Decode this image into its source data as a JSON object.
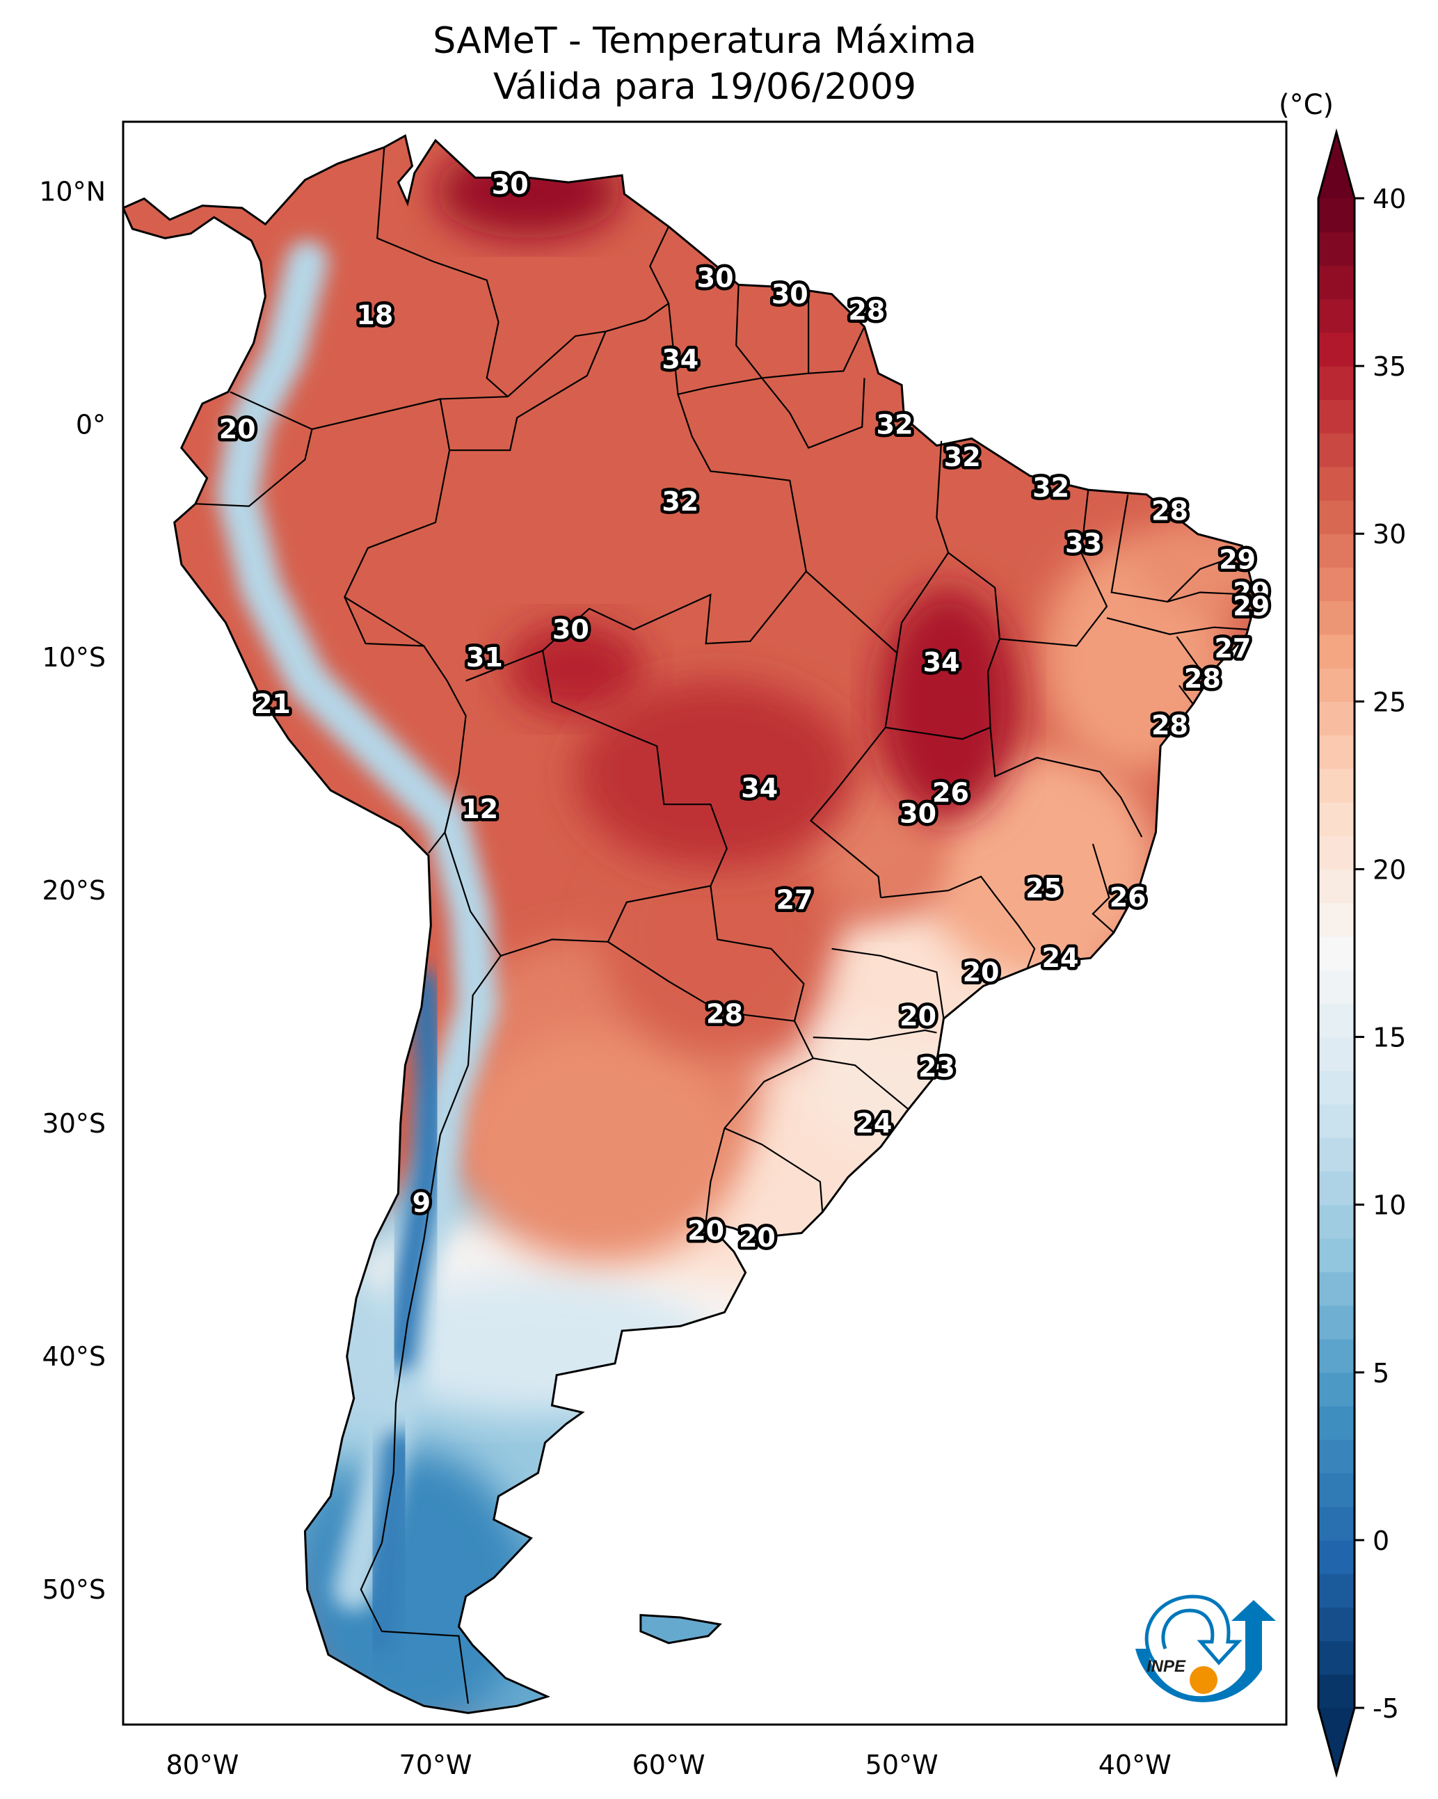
{
  "chart_data": {
    "type": "heatmap",
    "title": "SAMeT - Temperatura Máxima",
    "subtitle": "Válida para 19/06/2009",
    "variable": "Maximum temperature",
    "units": "(°C)",
    "lon_range": [
      -83.4,
      -33.5
    ],
    "lat_range": [
      -55.8,
      13.0
    ],
    "x_ticks": [
      {
        "value": -80,
        "label": "80°W"
      },
      {
        "value": -70,
        "label": "70°W"
      },
      {
        "value": -60,
        "label": "60°W"
      },
      {
        "value": -50,
        "label": "50°W"
      },
      {
        "value": -40,
        "label": "40°W"
      }
    ],
    "y_ticks": [
      {
        "value": 10,
        "label": "10°N"
      },
      {
        "value": 0,
        "label": "0°"
      },
      {
        "value": -10,
        "label": "10°S"
      },
      {
        "value": -20,
        "label": "20°S"
      },
      {
        "value": -30,
        "label": "30°S"
      },
      {
        "value": -40,
        "label": "40°S"
      },
      {
        "value": -50,
        "label": "50°S"
      }
    ],
    "colorbar": {
      "colormap": "RdBu_r",
      "vmin": -5,
      "vmax": 40,
      "extend": "both",
      "ticks": [
        -5,
        0,
        5,
        10,
        15,
        20,
        25,
        30,
        35,
        40
      ],
      "label": "(°C)",
      "colors": [
        "#053061",
        "#2166ac",
        "#4393c3",
        "#92c5de",
        "#d1e5f0",
        "#f7f7f7",
        "#fddbc7",
        "#f4a582",
        "#d6604d",
        "#b2182b",
        "#67001f"
      ]
    },
    "station_labels": [
      {
        "lon": -66.8,
        "lat": 10.3,
        "value": 30
      },
      {
        "lon": -72.6,
        "lat": 4.7,
        "value": 18
      },
      {
        "lon": -58.0,
        "lat": 6.3,
        "value": 30
      },
      {
        "lon": -54.8,
        "lat": 5.6,
        "value": 30
      },
      {
        "lon": -51.5,
        "lat": 4.9,
        "value": 28
      },
      {
        "lon": -59.5,
        "lat": 2.8,
        "value": 34
      },
      {
        "lon": -78.5,
        "lat": -0.2,
        "value": 20
      },
      {
        "lon": -50.3,
        "lat": 0.0,
        "value": 32
      },
      {
        "lon": -47.4,
        "lat": -1.4,
        "value": 32
      },
      {
        "lon": -59.5,
        "lat": -3.3,
        "value": 32
      },
      {
        "lon": -43.6,
        "lat": -2.7,
        "value": 32
      },
      {
        "lon": -42.2,
        "lat": -5.1,
        "value": 33
      },
      {
        "lon": -38.5,
        "lat": -3.7,
        "value": 28
      },
      {
        "lon": -35.6,
        "lat": -5.8,
        "value": 29
      },
      {
        "lon": -35.0,
        "lat": -7.2,
        "value": 29
      },
      {
        "lon": -35.0,
        "lat": -7.8,
        "value": 29
      },
      {
        "lon": -35.8,
        "lat": -9.6,
        "value": 27
      },
      {
        "lon": -37.1,
        "lat": -10.9,
        "value": 28
      },
      {
        "lon": -38.5,
        "lat": -12.9,
        "value": 28
      },
      {
        "lon": -64.2,
        "lat": -8.8,
        "value": 30
      },
      {
        "lon": -67.9,
        "lat": -10.0,
        "value": 31
      },
      {
        "lon": -48.3,
        "lat": -10.2,
        "value": 34
      },
      {
        "lon": -77.0,
        "lat": -12.0,
        "value": 21
      },
      {
        "lon": -68.1,
        "lat": -16.5,
        "value": 12
      },
      {
        "lon": -56.1,
        "lat": -15.6,
        "value": 34
      },
      {
        "lon": -47.9,
        "lat": -15.8,
        "value": 26
      },
      {
        "lon": -49.3,
        "lat": -16.7,
        "value": 30
      },
      {
        "lon": -54.6,
        "lat": -20.4,
        "value": 27
      },
      {
        "lon": -43.9,
        "lat": -19.9,
        "value": 25
      },
      {
        "lon": -40.3,
        "lat": -20.3,
        "value": 26
      },
      {
        "lon": -43.2,
        "lat": -22.9,
        "value": 24
      },
      {
        "lon": -46.6,
        "lat": -23.5,
        "value": 20
      },
      {
        "lon": -49.3,
        "lat": -25.4,
        "value": 20
      },
      {
        "lon": -57.6,
        "lat": -25.3,
        "value": 28
      },
      {
        "lon": -48.5,
        "lat": -27.6,
        "value": 23
      },
      {
        "lon": -51.2,
        "lat": -30.0,
        "value": 24
      },
      {
        "lon": -70.6,
        "lat": -33.4,
        "value": 9
      },
      {
        "lon": -58.4,
        "lat": -34.6,
        "value": 20
      },
      {
        "lon": -56.2,
        "lat": -34.9,
        "value": 20
      }
    ]
  },
  "logo": {
    "text": "INPE",
    "primary_color": "#0077bb",
    "accent_color": "#f39200"
  }
}
